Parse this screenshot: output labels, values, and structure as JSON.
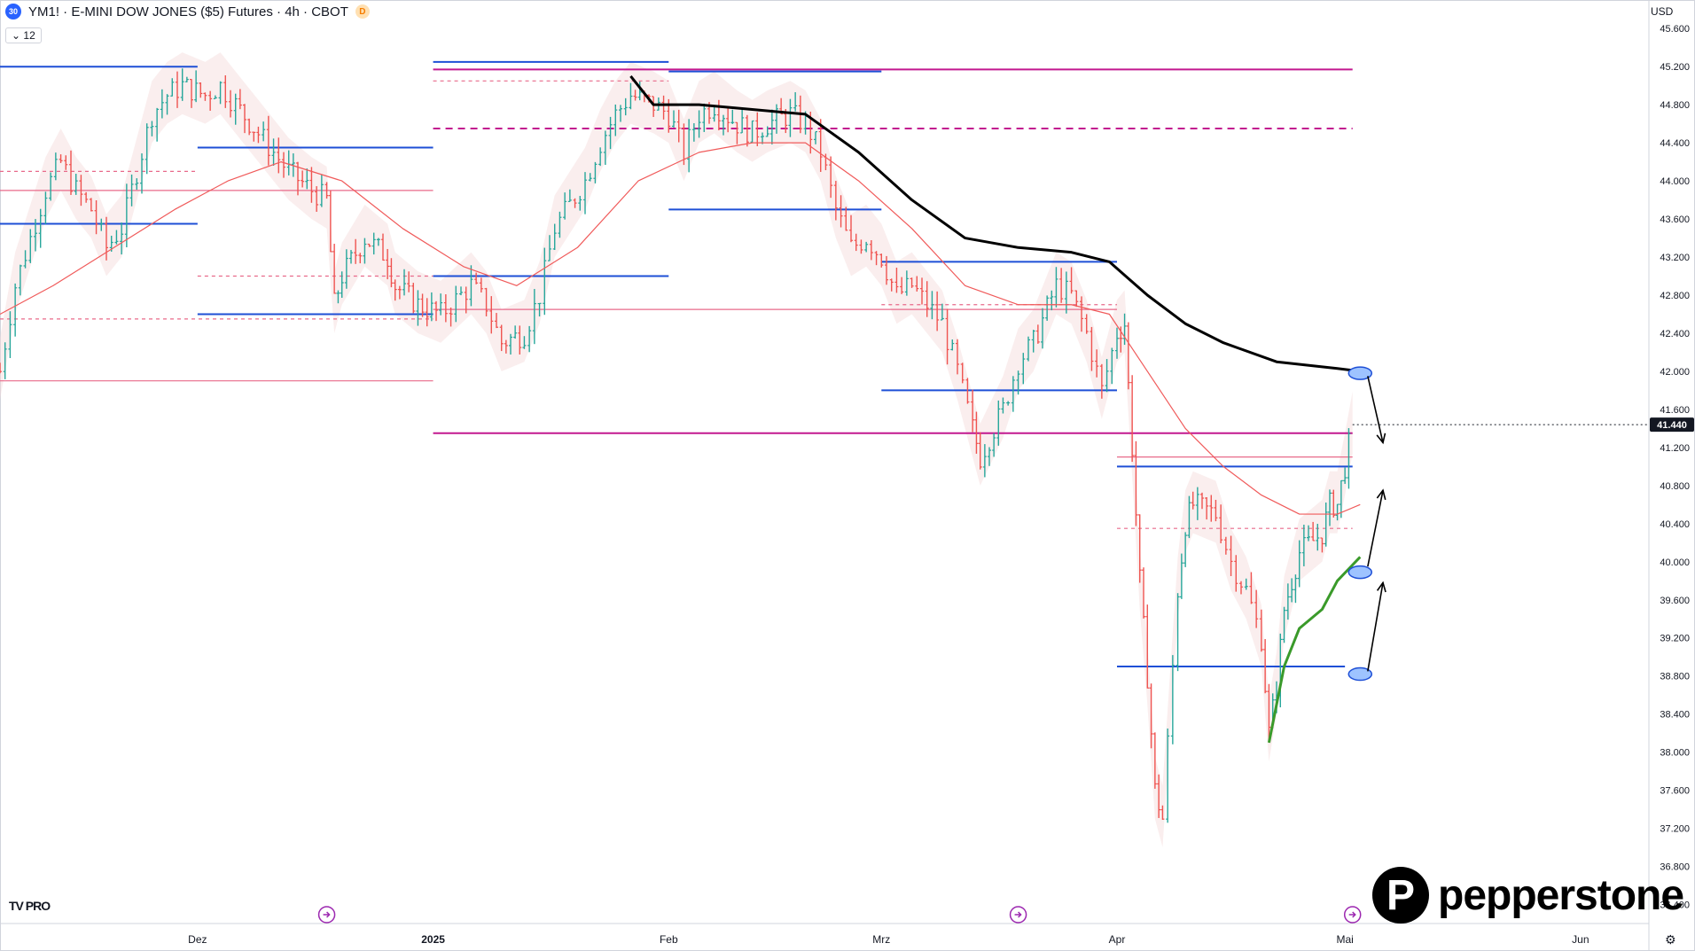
{
  "header": {
    "symbol_badge": "30",
    "title": "YM1! · E-MINI DOW JONES ($5) Futures · 4h · CBOT",
    "d_badge": "D",
    "indicator_label": "⌄ 12",
    "currency": "USD"
  },
  "branding": {
    "tv": "TV PRO",
    "brand": "pepperstone"
  },
  "colors": {
    "up": "#26a69a",
    "down": "#ef5350",
    "ma_red": "#f05a5a",
    "blue_level": "#1e4fd6",
    "magenta_level": "#c2188f",
    "pink_level": "#e86a8a",
    "black_line": "#000000",
    "green_line": "#3a9a2a",
    "price_tag": "#131722"
  },
  "chart_data": {
    "type": "candlestick",
    "title": "YM1! · E-MINI DOW JONES ($5) Futures · 4h · CBOT",
    "xlabel": "",
    "ylabel": "",
    "ylim": [
      36200,
      45900
    ],
    "yticks": [
      36400,
      36800,
      37200,
      37600,
      38000,
      38400,
      38800,
      39200,
      39600,
      40000,
      40400,
      40800,
      41200,
      41600,
      42000,
      42400,
      42800,
      43200,
      43600,
      44000,
      44400,
      44800,
      45200,
      45600
    ],
    "ytick_labels": [
      "36.400",
      "36.800",
      "37.200",
      "37.600",
      "38.000",
      "38.400",
      "38.800",
      "39.200",
      "39.600",
      "40.000",
      "40.400",
      "40.800",
      "41.200",
      "41.600",
      "42.000",
      "42.400",
      "42.800",
      "43.200",
      "43.600",
      "44.000",
      "44.400",
      "44.800",
      "45.200",
      "45.600"
    ],
    "x_range": [
      "2024-11-05",
      "2025-06-10"
    ],
    "xticks": [
      {
        "date": "2024-12-01",
        "label": "Dez"
      },
      {
        "date": "2025-01-01",
        "label": "2025",
        "bold": true
      },
      {
        "date": "2025-02-01",
        "label": "Feb"
      },
      {
        "date": "2025-03-01",
        "label": "Mrz"
      },
      {
        "date": "2025-04-01",
        "label": "Apr"
      },
      {
        "date": "2025-05-01",
        "label": "Mai"
      },
      {
        "date": "2025-06-01",
        "label": "Jun"
      }
    ],
    "last_price": {
      "value": 41440,
      "label": "41.440"
    },
    "event_markers": [
      "2024-12-18",
      "2025-03-19",
      "2025-05-02"
    ],
    "price_path": [
      [
        "2024-11-05",
        42000
      ],
      [
        "2024-11-07",
        42900
      ],
      [
        "2024-11-09",
        43400
      ],
      [
        "2024-11-11",
        43900
      ],
      [
        "2024-11-13",
        44200
      ],
      [
        "2024-11-15",
        43900
      ],
      [
        "2024-11-17",
        43700
      ],
      [
        "2024-11-19",
        43300
      ],
      [
        "2024-11-21",
        43500
      ],
      [
        "2024-11-23",
        44100
      ],
      [
        "2024-11-25",
        44700
      ],
      [
        "2024-11-27",
        44900
      ],
      [
        "2024-11-29",
        45000
      ],
      [
        "2024-12-02",
        44900
      ],
      [
        "2024-12-04",
        45000
      ],
      [
        "2024-12-06",
        44800
      ],
      [
        "2024-12-09",
        44500
      ],
      [
        "2024-12-11",
        44300
      ],
      [
        "2024-12-13",
        44100
      ],
      [
        "2024-12-16",
        43900
      ],
      [
        "2024-12-18",
        43800
      ],
      [
        "2024-12-19",
        42700
      ],
      [
        "2024-12-20",
        43000
      ],
      [
        "2024-12-23",
        43400
      ],
      [
        "2024-12-26",
        43200
      ],
      [
        "2024-12-27",
        42900
      ],
      [
        "2024-12-30",
        42700
      ],
      [
        "2025-01-02",
        42600
      ],
      [
        "2025-01-06",
        42900
      ],
      [
        "2025-01-08",
        42700
      ],
      [
        "2025-01-10",
        42300
      ],
      [
        "2025-01-13",
        42400
      ],
      [
        "2025-01-15",
        42800
      ],
      [
        "2025-01-17",
        43500
      ],
      [
        "2025-01-21",
        44000
      ],
      [
        "2025-01-23",
        44400
      ],
      [
        "2025-01-25",
        44700
      ],
      [
        "2025-01-27",
        44900
      ],
      [
        "2025-01-30",
        44800
      ],
      [
        "2025-02-01",
        44700
      ],
      [
        "2025-02-03",
        44300
      ],
      [
        "2025-02-05",
        44700
      ],
      [
        "2025-02-07",
        44800
      ],
      [
        "2025-02-10",
        44600
      ],
      [
        "2025-02-12",
        44500
      ],
      [
        "2025-02-14",
        44600
      ],
      [
        "2025-02-17",
        44700
      ],
      [
        "2025-02-19",
        44600
      ],
      [
        "2025-02-21",
        44300
      ],
      [
        "2025-02-23",
        43700
      ],
      [
        "2025-02-25",
        43300
      ],
      [
        "2025-02-27",
        43400
      ],
      [
        "2025-03-01",
        43200
      ],
      [
        "2025-03-03",
        42800
      ],
      [
        "2025-03-05",
        42900
      ],
      [
        "2025-03-07",
        42700
      ],
      [
        "2025-03-09",
        42500
      ],
      [
        "2025-03-11",
        42000
      ],
      [
        "2025-03-13",
        41400
      ],
      [
        "2025-03-14",
        41100
      ],
      [
        "2025-03-17",
        41600
      ],
      [
        "2025-03-19",
        42100
      ],
      [
        "2025-03-21",
        42300
      ],
      [
        "2025-03-24",
        42900
      ],
      [
        "2025-03-26",
        42800
      ],
      [
        "2025-03-28",
        42400
      ],
      [
        "2025-03-30",
        41800
      ],
      [
        "2025-04-01",
        42400
      ],
      [
        "2025-04-02",
        42500
      ],
      [
        "2025-04-03",
        41200
      ],
      [
        "2025-04-04",
        39800
      ],
      [
        "2025-04-05",
        38800
      ],
      [
        "2025-04-06",
        37600
      ],
      [
        "2025-04-07",
        37300
      ],
      [
        "2025-04-09",
        39700
      ],
      [
        "2025-04-10",
        40400
      ],
      [
        "2025-04-11",
        40600
      ],
      [
        "2025-04-14",
        40500
      ],
      [
        "2025-04-16",
        40000
      ],
      [
        "2025-04-18",
        39700
      ],
      [
        "2025-04-20",
        39200
      ],
      [
        "2025-04-21",
        38200
      ],
      [
        "2025-04-22",
        38700
      ],
      [
        "2025-04-23",
        39500
      ],
      [
        "2025-04-24",
        39800
      ],
      [
        "2025-04-25",
        40100
      ],
      [
        "2025-04-28",
        40300
      ],
      [
        "2025-04-29",
        40600
      ],
      [
        "2025-04-30",
        40600
      ],
      [
        "2025-05-01",
        41000
      ],
      [
        "2025-05-02",
        41440
      ]
    ],
    "overlay_lines": [
      {
        "name": "",
        "color": "#f05a5a",
        "width": 1.2,
        "points": [
          [
            "2024-11-05",
            42600
          ],
          [
            "2024-11-12",
            42900
          ],
          [
            "2024-11-20",
            43300
          ],
          [
            "2024-11-28",
            43700
          ],
          [
            "2024-12-05",
            44000
          ],
          [
            "2024-12-12",
            44200
          ],
          [
            "2024-12-20",
            44000
          ],
          [
            "2024-12-28",
            43500
          ],
          [
            "2025-01-05",
            43100
          ],
          [
            "2025-01-12",
            42900
          ],
          [
            "2025-01-20",
            43300
          ],
          [
            "2025-01-28",
            44000
          ],
          [
            "2025-02-05",
            44300
          ],
          [
            "2025-02-12",
            44400
          ],
          [
            "2025-02-19",
            44400
          ],
          [
            "2025-02-26",
            44000
          ],
          [
            "2025-03-05",
            43500
          ],
          [
            "2025-03-12",
            42900
          ],
          [
            "2025-03-19",
            42700
          ],
          [
            "2025-03-26",
            42700
          ],
          [
            "2025-03-31",
            42600
          ],
          [
            "2025-04-05",
            42000
          ],
          [
            "2025-04-10",
            41400
          ],
          [
            "2025-04-15",
            41000
          ],
          [
            "2025-04-20",
            40700
          ],
          [
            "2025-04-25",
            40500
          ],
          [
            "2025-04-30",
            40500
          ],
          [
            "2025-05-03",
            40600
          ]
        ]
      },
      {
        "name": "",
        "color": "#000000",
        "width": 3,
        "points": [
          [
            "2025-01-27",
            45100
          ],
          [
            "2025-01-30",
            44800
          ],
          [
            "2025-02-05",
            44800
          ],
          [
            "2025-02-12",
            44750
          ],
          [
            "2025-02-19",
            44700
          ],
          [
            "2025-02-26",
            44300
          ],
          [
            "2025-03-05",
            43800
          ],
          [
            "2025-03-12",
            43400
          ],
          [
            "2025-03-19",
            43300
          ],
          [
            "2025-03-26",
            43250
          ],
          [
            "2025-03-31",
            43150
          ],
          [
            "2025-04-05",
            42800
          ],
          [
            "2025-04-10",
            42500
          ],
          [
            "2025-04-15",
            42300
          ],
          [
            "2025-04-22",
            42100
          ],
          [
            "2025-04-30",
            42030
          ],
          [
            "2025-05-03",
            42000
          ]
        ]
      },
      {
        "name": "",
        "color": "#3a9a2a",
        "width": 3,
        "points": [
          [
            "2025-04-21",
            38100
          ],
          [
            "2025-04-23",
            38900
          ],
          [
            "2025-04-25",
            39300
          ],
          [
            "2025-04-28",
            39500
          ],
          [
            "2025-04-30",
            39800
          ],
          [
            "2025-05-03",
            40050
          ]
        ]
      }
    ],
    "levels": [
      {
        "color": "#1e4fd6",
        "style": "solid",
        "y": 45200,
        "x0": "2024-11-05",
        "x1": "2024-12-01"
      },
      {
        "color": "#1e4fd6",
        "style": "solid",
        "y": 44350,
        "x0": "2024-12-01",
        "x1": "2025-01-01"
      },
      {
        "color": "#1e4fd6",
        "style": "solid",
        "y": 43550,
        "x0": "2024-11-05",
        "x1": "2024-12-01"
      },
      {
        "color": "#1e4fd6",
        "style": "solid",
        "y": 42600,
        "x0": "2024-12-01",
        "x1": "2025-01-01"
      },
      {
        "color": "#1e4fd6",
        "style": "solid",
        "y": 43000,
        "x0": "2025-01-01",
        "x1": "2025-02-01"
      },
      {
        "color": "#1e4fd6",
        "style": "solid",
        "y": 45250,
        "x0": "2025-01-01",
        "x1": "2025-02-01"
      },
      {
        "color": "#1e4fd6",
        "style": "solid",
        "y": 45150,
        "x0": "2025-02-01",
        "x1": "2025-03-01"
      },
      {
        "color": "#1e4fd6",
        "style": "solid",
        "y": 43700,
        "x0": "2025-02-01",
        "x1": "2025-03-01"
      },
      {
        "color": "#1e4fd6",
        "style": "solid",
        "y": 43150,
        "x0": "2025-03-01",
        "x1": "2025-04-01"
      },
      {
        "color": "#1e4fd6",
        "style": "solid",
        "y": 41800,
        "x0": "2025-03-01",
        "x1": "2025-04-01"
      },
      {
        "color": "#1e4fd6",
        "style": "solid",
        "y": 41000,
        "x0": "2025-04-01",
        "x1": "2025-05-02"
      },
      {
        "color": "#1e4fd6",
        "style": "solid",
        "y": 38900,
        "x0": "2025-04-01",
        "x1": "2025-05-01"
      },
      {
        "color": "#c2188f",
        "style": "solid",
        "y": 45170,
        "x0": "2025-01-01",
        "x1": "2025-05-02"
      },
      {
        "color": "#c2188f",
        "style": "dashed",
        "y": 44550,
        "x0": "2025-01-01",
        "x1": "2025-05-02"
      },
      {
        "color": "#c2188f",
        "style": "solid",
        "y": 41350,
        "x0": "2025-01-01",
        "x1": "2025-05-02"
      },
      {
        "color": "#e86a8a",
        "style": "solid",
        "y": 43900,
        "x0": "2024-11-05",
        "x1": "2025-01-01"
      },
      {
        "color": "#e86a8a",
        "style": "solid",
        "y": 41900,
        "x0": "2024-11-05",
        "x1": "2025-01-01"
      },
      {
        "color": "#e86a8a",
        "style": "solid",
        "y": 42650,
        "x0": "2025-01-01",
        "x1": "2025-04-01"
      },
      {
        "color": "#e86a8a",
        "style": "solid",
        "y": 41100,
        "x0": "2025-04-01",
        "x1": "2025-05-02"
      },
      {
        "color": "#e86a8a",
        "style": "dashed",
        "y": 44100,
        "x0": "2024-11-05",
        "x1": "2024-12-01"
      },
      {
        "color": "#e86a8a",
        "style": "dashed",
        "y": 42550,
        "x0": "2024-11-05",
        "x1": "2025-01-01"
      },
      {
        "color": "#e86a8a",
        "style": "dashed",
        "y": 43000,
        "x0": "2024-12-01",
        "x1": "2025-01-01"
      },
      {
        "color": "#e86a8a",
        "style": "dashed",
        "y": 45050,
        "x0": "2025-01-01",
        "x1": "2025-02-01"
      },
      {
        "color": "#e86a8a",
        "style": "dashed",
        "y": 42700,
        "x0": "2025-03-01",
        "x1": "2025-04-01"
      },
      {
        "color": "#e86a8a",
        "style": "dashed",
        "y": 40350,
        "x0": "2025-04-01",
        "x1": "2025-05-02"
      }
    ],
    "annotations": {
      "circles": [
        {
          "date": "2025-05-03",
          "y": 41980
        },
        {
          "date": "2025-05-03",
          "y": 39890
        },
        {
          "date": "2025-05-03",
          "y": 38820
        }
      ],
      "arrows": [
        {
          "from": [
            "2025-05-04",
            41950
          ],
          "to": [
            "2025-05-06",
            41250
          ]
        },
        {
          "from": [
            "2025-05-04",
            39950
          ],
          "to": [
            "2025-05-06",
            40750
          ]
        },
        {
          "from": [
            "2025-05-04",
            38850
          ],
          "to": [
            "2025-05-06",
            39780
          ]
        }
      ]
    }
  }
}
